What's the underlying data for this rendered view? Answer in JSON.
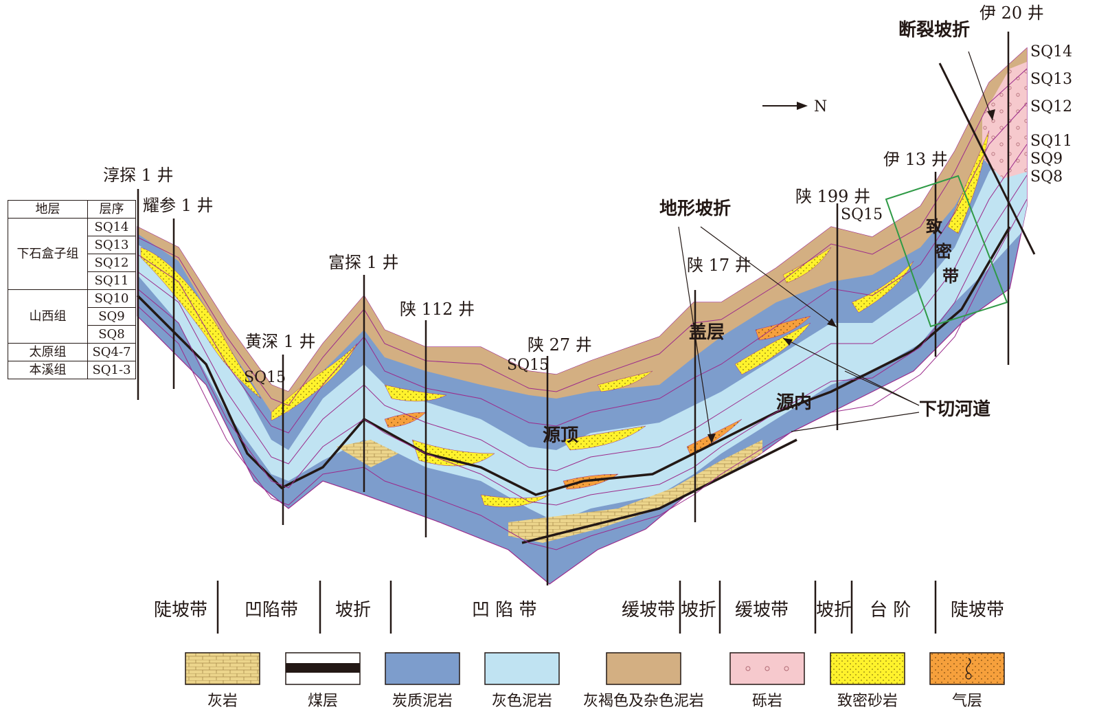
{
  "north_arrow": "N",
  "wells": [
    {
      "name": "淳探 1 井"
    },
    {
      "name": "耀参 1 井"
    },
    {
      "name": "黄深 1 井"
    },
    {
      "name": "富探 1 井"
    },
    {
      "name": "陕 112 井"
    },
    {
      "name": "陕 27 井"
    },
    {
      "name": "陕 17 井"
    },
    {
      "name": "陕 199 井"
    },
    {
      "name": "伊 13 井"
    },
    {
      "name": "伊 20 井"
    }
  ],
  "annotations": {
    "fault_break": "断裂坡折",
    "terrain_break": "地形坡折",
    "caprock": "盖层",
    "source_top": "源顶",
    "source_inner": "源内",
    "incised_channel": "下切河道",
    "tight_zone": [
      "致",
      "密",
      "带"
    ],
    "sq15_a": "SQ15",
    "sq15_b": "SQ15",
    "sq15_c": "SQ15"
  },
  "right_sequences": [
    "SQ14",
    "SQ13",
    "SQ12",
    "SQ11",
    "SQ9",
    "SQ8"
  ],
  "strat_table": {
    "header": {
      "formation": "地层",
      "sequence": "层序"
    },
    "formations": [
      {
        "name": "下石盒子组",
        "sequences": [
          "SQ14",
          "SQ13",
          "SQ12",
          "SQ11"
        ]
      },
      {
        "name": "山西组",
        "sequences": [
          "SQ10",
          "SQ9",
          "SQ8"
        ]
      },
      {
        "name": "太原组",
        "sequences": [
          "SQ4-7"
        ]
      },
      {
        "name": "本溪组",
        "sequences": [
          "SQ1-3"
        ]
      }
    ]
  },
  "zones": [
    "陡坡带",
    "凹陷带",
    "坡折",
    "凹 陷 带",
    "缓坡带",
    "坡折",
    "缓坡带",
    "坡折",
    "台 阶",
    "陡坡带"
  ],
  "legend": [
    {
      "label": "灰岩",
      "color": "#ecd58c",
      "pattern": "brick"
    },
    {
      "label": "煤层",
      "color": "#ffffff",
      "pattern": "coal"
    },
    {
      "label": "炭质泥岩",
      "color": "#7d9dcc",
      "pattern": "solid"
    },
    {
      "label": "灰色泥岩",
      "color": "#c0e3f2",
      "pattern": "solid"
    },
    {
      "label": "灰褐色及杂色泥岩",
      "color": "#d3af82",
      "pattern": "solid"
    },
    {
      "label": "砾岩",
      "color": "#f6c9cd",
      "pattern": "circles"
    },
    {
      "label": "致密砂岩",
      "color": "#fff22c",
      "pattern": "dots"
    },
    {
      "label": "气层",
      "color": "#f6a03c",
      "pattern": "gas"
    }
  ],
  "colors": {
    "limestone": "#ecd58c",
    "coal": "#231815",
    "carbonaceous_mudstone": "#7d9dcc",
    "gray_mudstone": "#c0e3f2",
    "brown_mudstone": "#d3af82",
    "conglomerate": "#f6c9cd",
    "tight_sandstone": "#fff22c",
    "gas_layer": "#f6a03c",
    "sequence_boundary": "#9b2a8b",
    "tight_zone_box": "#2f9a46"
  }
}
